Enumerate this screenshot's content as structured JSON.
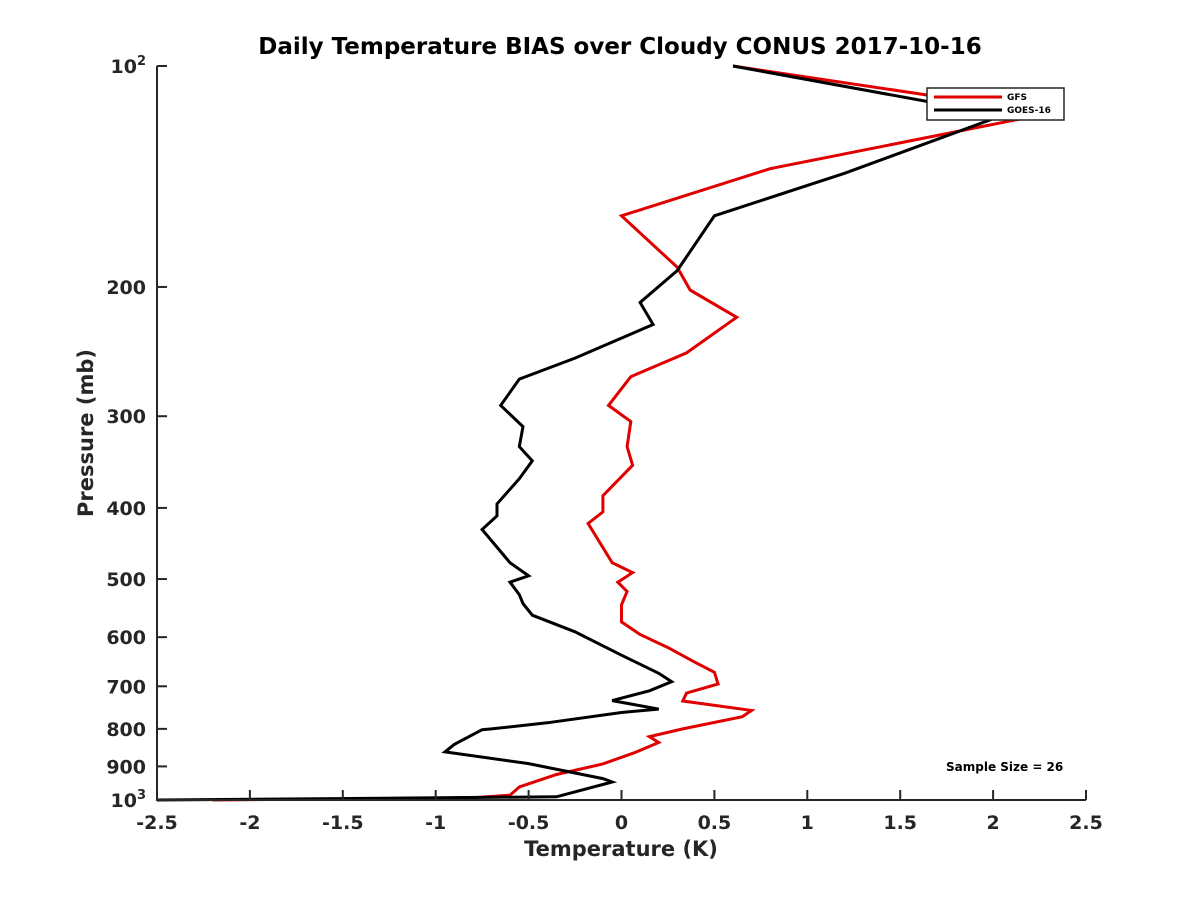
{
  "chart_data": {
    "type": "line",
    "title": "Daily Temperature BIAS over Cloudy CONUS 2017-10-16",
    "xlabel": "Temperature (K)",
    "ylabel": "Pressure (mb)",
    "xlim": [
      -2.5,
      2.5
    ],
    "ylim": [
      100,
      1000
    ],
    "y_scale": "log",
    "y_reversed": true,
    "grid": false,
    "legend_position": "top-right",
    "x_ticks": [
      -2.5,
      -2,
      -1.5,
      -1,
      -0.5,
      0,
      0.5,
      1,
      1.5,
      2,
      2.5
    ],
    "x_tick_labels": [
      "-2.5",
      "-2",
      "-1.5",
      "-1",
      "-0.5",
      "0",
      "0.5",
      "1",
      "1.5",
      "2",
      "2.5"
    ],
    "y_ticks": [
      {
        "value": 100,
        "base": "10",
        "exp": "2"
      },
      {
        "value": 200,
        "label": "200"
      },
      {
        "value": 300,
        "label": "300"
      },
      {
        "value": 400,
        "label": "400"
      },
      {
        "value": 500,
        "label": "500"
      },
      {
        "value": 600,
        "label": "600"
      },
      {
        "value": 700,
        "label": "700"
      },
      {
        "value": 800,
        "label": "800"
      },
      {
        "value": 900,
        "label": "900"
      },
      {
        "value": 1000,
        "base": "10",
        "exp": "3"
      }
    ],
    "annotation": "Sample Size = 26",
    "series": [
      {
        "name": "GFS",
        "color": "#e00000",
        "points": [
          [
            0.6,
            100
          ],
          [
            1.9,
            112
          ],
          [
            2.15,
            118
          ],
          [
            0.8,
            138
          ],
          [
            0.0,
            160
          ],
          [
            0.3,
            188
          ],
          [
            0.37,
            202
          ],
          [
            0.62,
            220
          ],
          [
            0.35,
            246
          ],
          [
            0.05,
            265
          ],
          [
            -0.07,
            290
          ],
          [
            0.05,
            305
          ],
          [
            0.03,
            330
          ],
          [
            0.06,
            350
          ],
          [
            -0.1,
            385
          ],
          [
            -0.1,
            405
          ],
          [
            -0.18,
            420
          ],
          [
            -0.05,
            475
          ],
          [
            0.06,
            490
          ],
          [
            -0.02,
            505
          ],
          [
            0.03,
            520
          ],
          [
            0.0,
            542
          ],
          [
            0.0,
            572
          ],
          [
            0.1,
            595
          ],
          [
            0.25,
            620
          ],
          [
            0.4,
            650
          ],
          [
            0.5,
            670
          ],
          [
            0.52,
            695
          ],
          [
            0.35,
            715
          ],
          [
            0.33,
            733
          ],
          [
            0.7,
            755
          ],
          [
            0.65,
            770
          ],
          [
            0.33,
            800
          ],
          [
            0.15,
            820
          ],
          [
            0.2,
            835
          ],
          [
            0.07,
            862
          ],
          [
            -0.1,
            893
          ],
          [
            -0.35,
            923
          ],
          [
            -0.55,
            960
          ],
          [
            -0.6,
            985
          ],
          [
            -0.8,
            993
          ],
          [
            -2.2,
            1000
          ]
        ]
      },
      {
        "name": "GOES-16",
        "color": "#000000",
        "points": [
          [
            0.6,
            100
          ],
          [
            1.75,
            113
          ],
          [
            2.0,
            118
          ],
          [
            1.2,
            140
          ],
          [
            0.5,
            160
          ],
          [
            0.3,
            190
          ],
          [
            0.1,
            210
          ],
          [
            0.17,
            225
          ],
          [
            -0.25,
            250
          ],
          [
            -0.55,
            267
          ],
          [
            -0.65,
            290
          ],
          [
            -0.53,
            310
          ],
          [
            -0.55,
            330
          ],
          [
            -0.48,
            345
          ],
          [
            -0.55,
            365
          ],
          [
            -0.67,
            395
          ],
          [
            -0.67,
            410
          ],
          [
            -0.75,
            428
          ],
          [
            -0.6,
            475
          ],
          [
            -0.5,
            495
          ],
          [
            -0.6,
            505
          ],
          [
            -0.55,
            525
          ],
          [
            -0.53,
            540
          ],
          [
            -0.48,
            560
          ],
          [
            -0.25,
            590
          ],
          [
            0.0,
            635
          ],
          [
            0.2,
            672
          ],
          [
            0.27,
            690
          ],
          [
            0.15,
            710
          ],
          [
            -0.05,
            732
          ],
          [
            0.2,
            752
          ],
          [
            0.0,
            760
          ],
          [
            -0.4,
            785
          ],
          [
            -0.7,
            800
          ],
          [
            -0.75,
            802
          ],
          [
            -0.9,
            840
          ],
          [
            -0.95,
            860
          ],
          [
            -0.5,
            892
          ],
          [
            -0.1,
            935
          ],
          [
            -0.05,
            945
          ],
          [
            -0.35,
            990
          ],
          [
            -2.5,
            1000
          ]
        ]
      }
    ]
  }
}
